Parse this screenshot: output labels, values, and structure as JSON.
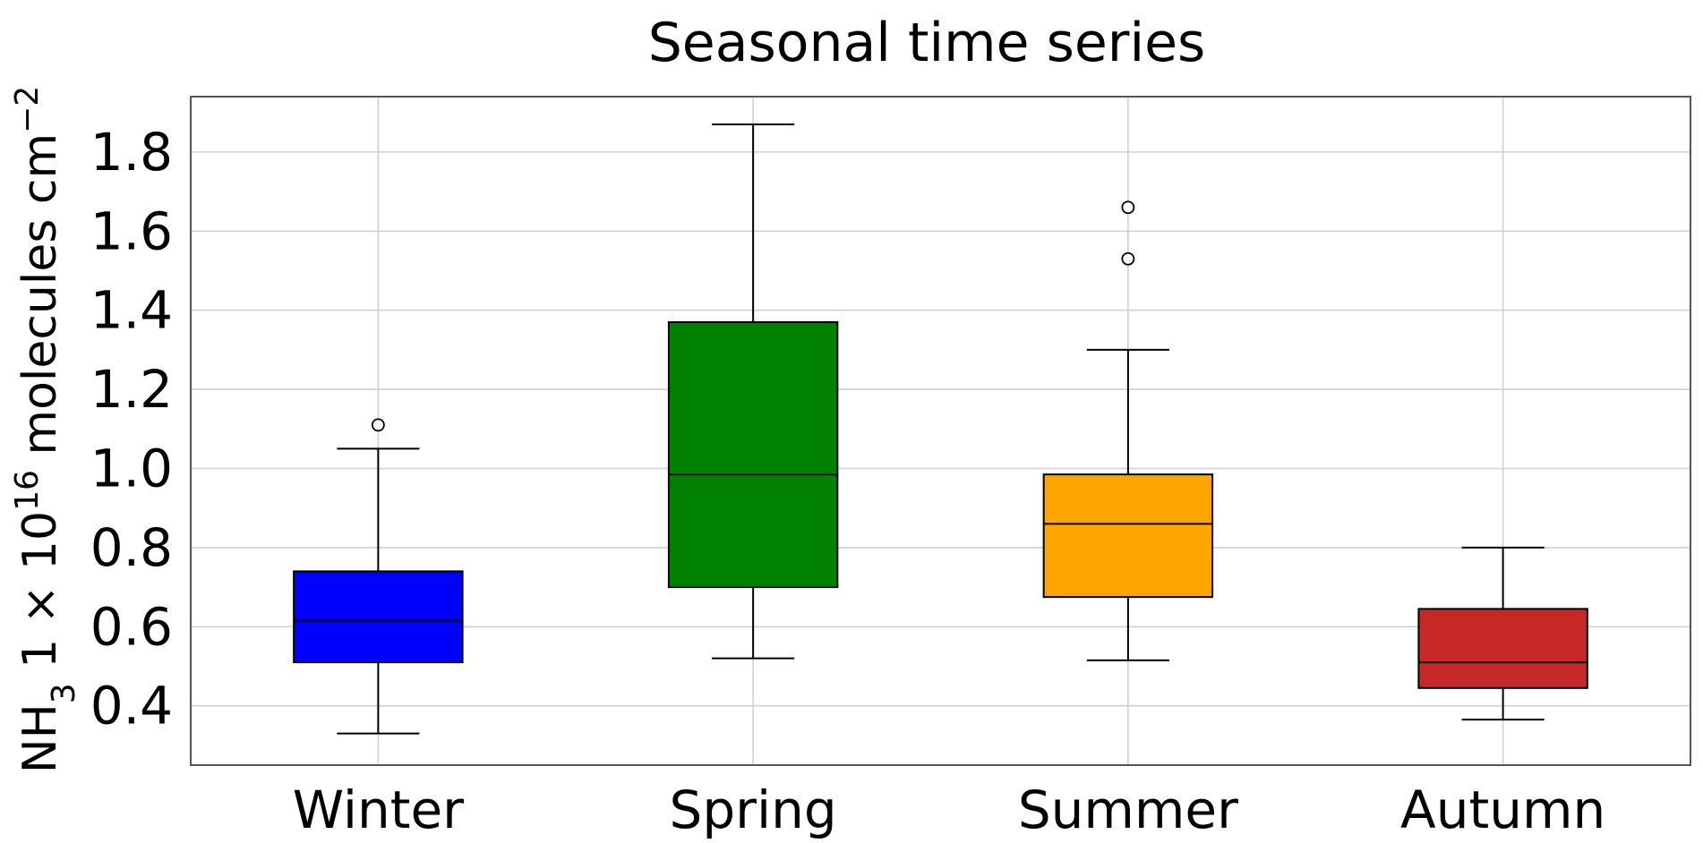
{
  "chart_data": {
    "type": "box",
    "title": "Seasonal time series",
    "ylabel": {
      "base": "NH",
      "sub": "3",
      "mid": " 1 × 10",
      "sup": "16",
      "unit": " molecules cm",
      "unit_sup": "−2"
    },
    "ylim": [
      0.25,
      1.94
    ],
    "yticks": [
      0.4,
      0.6,
      0.8,
      1.0,
      1.2,
      1.4,
      1.6,
      1.8
    ],
    "ytick_labels": [
      "0.4",
      "0.6",
      "0.8",
      "1.0",
      "1.2",
      "1.4",
      "1.6",
      "1.8"
    ],
    "grid": true,
    "categories": [
      "Winter",
      "Spring",
      "Summer",
      "Autumn"
    ],
    "boxes": [
      {
        "name": "Winter",
        "whisker_low": 0.33,
        "q1": 0.51,
        "median": 0.615,
        "q3": 0.74,
        "whisker_high": 1.05,
        "outliers": [
          1.11
        ],
        "color": "#0000ff"
      },
      {
        "name": "Spring",
        "whisker_low": 0.52,
        "q1": 0.7,
        "median": 0.985,
        "q3": 1.37,
        "whisker_high": 1.87,
        "outliers": [],
        "color": "#008000"
      },
      {
        "name": "Summer",
        "whisker_low": 0.515,
        "q1": 0.675,
        "median": 0.86,
        "q3": 0.985,
        "whisker_high": 1.3,
        "outliers": [
          1.53,
          1.66
        ],
        "color": "#ffa500"
      },
      {
        "name": "Autumn",
        "whisker_low": 0.365,
        "q1": 0.445,
        "median": 0.51,
        "q3": 0.645,
        "whisker_high": 0.8,
        "outliers": [],
        "color": "#c62828"
      }
    ]
  }
}
